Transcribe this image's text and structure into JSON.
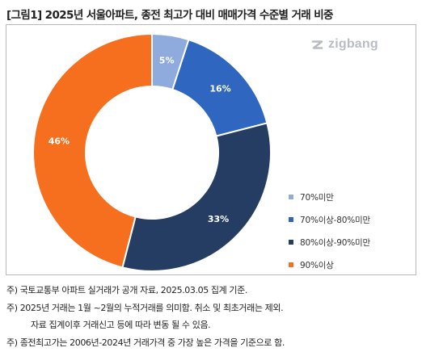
{
  "title": "[그림1] 2025년 서울아파트, 종전 최고가 대비 매매가격 수준별 거래 비중",
  "logo": {
    "text": "zigbang",
    "icon": "zigbang-logo-icon"
  },
  "chart_data": {
    "type": "pie",
    "donut": true,
    "categories": [
      "70%미만",
      "70%이상-80%미만",
      "80%이상-90%미만",
      "90%이상"
    ],
    "values": [
      5,
      16,
      33,
      46
    ],
    "data_labels": [
      "5%",
      "16%",
      "33%",
      "46%"
    ],
    "colors": [
      "#8faadc",
      "#2f66c0",
      "#263d63",
      "#f56f1f"
    ],
    "legend_position": "right"
  },
  "notes": [
    "주) 국토교통부 아파트 실거래가 공개 자료, 2025.03.05 집계 기준.",
    "주) 2025년 거래는 1월 ~2월의 누적거래를 의미함. 취소 및 최초거래는 제외.",
    "자료 집계이후 거래신고 등에 따라 변동 될 수 있음.",
    "주) 종전최고가는 2006년-2024년 거래가격 중 가장 높은 가격을 기준으로 함."
  ]
}
